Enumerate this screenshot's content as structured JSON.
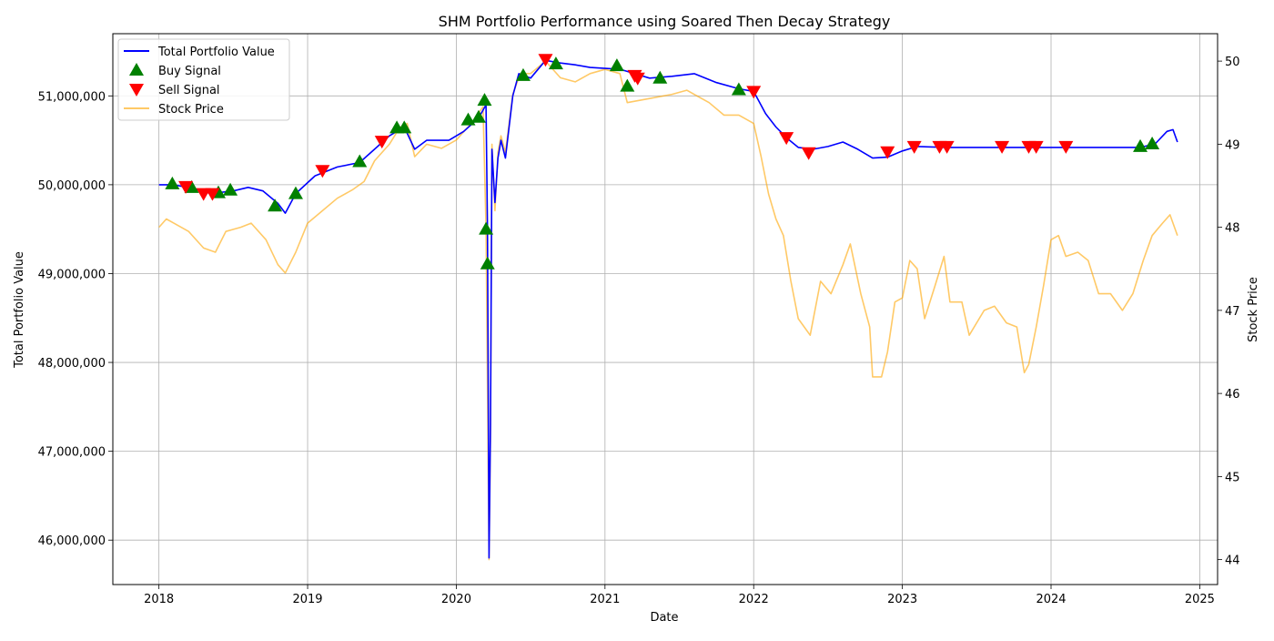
{
  "chart_data": {
    "type": "line",
    "title": "SHM Portfolio Performance using Soared Then Decay Strategy",
    "xlabel": "Date",
    "ylabel": "Total Portfolio Value",
    "y2label": "Stock Price",
    "grid": true,
    "legend_position": "top-left",
    "x_ticks": [
      "2018",
      "2019",
      "2020",
      "2021",
      "2022",
      "2023",
      "2024",
      "2025"
    ],
    "xlim": [
      2017.69,
      2025.12
    ],
    "ylim": [
      45500000,
      51700000
    ],
    "y_ticks": [
      46000000,
      47000000,
      48000000,
      49000000,
      50000000,
      51000000
    ],
    "y_tick_labels": [
      "46,000,000",
      "47,000,000",
      "48,000,000",
      "49,000,000",
      "50,000,000",
      "51,000,000"
    ],
    "y2lim": [
      43.7,
      50.33
    ],
    "y2_ticks": [
      44,
      45,
      46,
      47,
      48,
      49,
      50
    ],
    "y2_tick_labels": [
      "44",
      "45",
      "46",
      "47",
      "48",
      "49",
      "50"
    ],
    "series": [
      {
        "name": "Total Portfolio Value",
        "color": "#0000ff",
        "axis": "left",
        "marker": "line",
        "points": [
          [
            2018.0,
            50000000
          ],
          [
            2018.1,
            50000000
          ],
          [
            2018.25,
            49950000
          ],
          [
            2018.35,
            49900000
          ],
          [
            2018.5,
            49930000
          ],
          [
            2018.6,
            49970000
          ],
          [
            2018.7,
            49930000
          ],
          [
            2018.8,
            49790000
          ],
          [
            2018.85,
            49680000
          ],
          [
            2018.92,
            49900000
          ],
          [
            2019.05,
            50100000
          ],
          [
            2019.2,
            50200000
          ],
          [
            2019.35,
            50250000
          ],
          [
            2019.45,
            50400000
          ],
          [
            2019.55,
            50550000
          ],
          [
            2019.65,
            50650000
          ],
          [
            2019.72,
            50400000
          ],
          [
            2019.8,
            50500000
          ],
          [
            2019.95,
            50500000
          ],
          [
            2020.05,
            50600000
          ],
          [
            2020.15,
            50750000
          ],
          [
            2020.2,
            50900000
          ],
          [
            2020.21,
            49500000
          ],
          [
            2020.22,
            45800000
          ],
          [
            2020.23,
            47300000
          ],
          [
            2020.24,
            50400000
          ],
          [
            2020.26,
            49800000
          ],
          [
            2020.28,
            50300000
          ],
          [
            2020.3,
            50500000
          ],
          [
            2020.33,
            50300000
          ],
          [
            2020.38,
            51000000
          ],
          [
            2020.42,
            51250000
          ],
          [
            2020.5,
            51200000
          ],
          [
            2020.6,
            51400000
          ],
          [
            2020.7,
            51370000
          ],
          [
            2020.8,
            51350000
          ],
          [
            2020.9,
            51320000
          ],
          [
            2021.0,
            51310000
          ],
          [
            2021.1,
            51300000
          ],
          [
            2021.2,
            51250000
          ],
          [
            2021.3,
            51200000
          ],
          [
            2021.45,
            51220000
          ],
          [
            2021.6,
            51250000
          ],
          [
            2021.75,
            51150000
          ],
          [
            2021.9,
            51080000
          ],
          [
            2022.0,
            51050000
          ],
          [
            2022.08,
            50800000
          ],
          [
            2022.15,
            50650000
          ],
          [
            2022.22,
            50530000
          ],
          [
            2022.3,
            50420000
          ],
          [
            2022.4,
            50400000
          ],
          [
            2022.5,
            50430000
          ],
          [
            2022.6,
            50480000
          ],
          [
            2022.7,
            50400000
          ],
          [
            2022.8,
            50300000
          ],
          [
            2022.9,
            50310000
          ],
          [
            2023.0,
            50380000
          ],
          [
            2023.1,
            50430000
          ],
          [
            2023.3,
            50420000
          ],
          [
            2023.5,
            50420000
          ],
          [
            2023.8,
            50420000
          ],
          [
            2024.0,
            50420000
          ],
          [
            2024.3,
            50420000
          ],
          [
            2024.6,
            50420000
          ],
          [
            2024.7,
            50460000
          ],
          [
            2024.78,
            50600000
          ],
          [
            2024.82,
            50620000
          ],
          [
            2024.85,
            50480000
          ]
        ]
      },
      {
        "name": "Buy Signal",
        "color": "#008000",
        "axis": "left",
        "marker": "triangle-up",
        "points": [
          [
            2018.09,
            50010000
          ],
          [
            2018.22,
            49970000
          ],
          [
            2018.4,
            49910000
          ],
          [
            2018.48,
            49940000
          ],
          [
            2018.78,
            49760000
          ],
          [
            2018.92,
            49900000
          ],
          [
            2019.35,
            50260000
          ],
          [
            2019.6,
            50640000
          ],
          [
            2019.65,
            50640000
          ],
          [
            2020.08,
            50730000
          ],
          [
            2020.15,
            50760000
          ],
          [
            2020.19,
            50950000
          ],
          [
            2020.2,
            49500000
          ],
          [
            2020.21,
            49110000
          ],
          [
            2020.45,
            51230000
          ],
          [
            2020.67,
            51360000
          ],
          [
            2021.08,
            51340000
          ],
          [
            2021.15,
            51110000
          ],
          [
            2021.37,
            51200000
          ],
          [
            2021.9,
            51070000
          ],
          [
            2024.6,
            50430000
          ],
          [
            2024.68,
            50460000
          ]
        ]
      },
      {
        "name": "Sell Signal",
        "color": "#ff0000",
        "axis": "left",
        "marker": "triangle-down",
        "points": [
          [
            2018.18,
            49980000
          ],
          [
            2018.3,
            49900000
          ],
          [
            2018.36,
            49900000
          ],
          [
            2019.1,
            50160000
          ],
          [
            2019.5,
            50490000
          ],
          [
            2020.6,
            51410000
          ],
          [
            2021.2,
            51230000
          ],
          [
            2021.22,
            51200000
          ],
          [
            2022.0,
            51050000
          ],
          [
            2022.22,
            50530000
          ],
          [
            2022.37,
            50360000
          ],
          [
            2022.9,
            50370000
          ],
          [
            2023.08,
            50430000
          ],
          [
            2023.25,
            50430000
          ],
          [
            2023.3,
            50430000
          ],
          [
            2023.67,
            50430000
          ],
          [
            2023.85,
            50430000
          ],
          [
            2023.9,
            50430000
          ],
          [
            2024.1,
            50430000
          ]
        ]
      },
      {
        "name": "Stock Price",
        "color": "#ffa500",
        "axis": "right",
        "marker": "line",
        "points": [
          [
            2018.0,
            48.0
          ],
          [
            2018.05,
            48.1
          ],
          [
            2018.1,
            48.05
          ],
          [
            2018.2,
            47.95
          ],
          [
            2018.3,
            47.75
          ],
          [
            2018.38,
            47.7
          ],
          [
            2018.45,
            47.95
          ],
          [
            2018.55,
            48.0
          ],
          [
            2018.62,
            48.05
          ],
          [
            2018.72,
            47.85
          ],
          [
            2018.8,
            47.55
          ],
          [
            2018.85,
            47.45
          ],
          [
            2018.92,
            47.7
          ],
          [
            2019.0,
            48.05
          ],
          [
            2019.1,
            48.2
          ],
          [
            2019.2,
            48.35
          ],
          [
            2019.3,
            48.45
          ],
          [
            2019.38,
            48.55
          ],
          [
            2019.45,
            48.8
          ],
          [
            2019.55,
            49.0
          ],
          [
            2019.62,
            49.2
          ],
          [
            2019.67,
            49.25
          ],
          [
            2019.72,
            48.85
          ],
          [
            2019.8,
            49.0
          ],
          [
            2019.9,
            48.95
          ],
          [
            2020.0,
            49.05
          ],
          [
            2020.1,
            49.25
          ],
          [
            2020.18,
            49.45
          ],
          [
            2020.2,
            48.0
          ],
          [
            2020.22,
            44.0
          ],
          [
            2020.23,
            45.5
          ],
          [
            2020.24,
            49.0
          ],
          [
            2020.26,
            48.2
          ],
          [
            2020.28,
            48.9
          ],
          [
            2020.3,
            49.1
          ],
          [
            2020.33,
            48.9
          ],
          [
            2020.38,
            49.6
          ],
          [
            2020.43,
            49.85
          ],
          [
            2020.5,
            49.85
          ],
          [
            2020.6,
            50.0
          ],
          [
            2020.7,
            49.8
          ],
          [
            2020.8,
            49.75
          ],
          [
            2020.9,
            49.85
          ],
          [
            2021.0,
            49.9
          ],
          [
            2021.1,
            49.85
          ],
          [
            2021.15,
            49.5
          ],
          [
            2021.3,
            49.55
          ],
          [
            2021.45,
            49.6
          ],
          [
            2021.55,
            49.65
          ],
          [
            2021.7,
            49.5
          ],
          [
            2021.8,
            49.35
          ],
          [
            2021.9,
            49.35
          ],
          [
            2022.0,
            49.25
          ],
          [
            2022.05,
            48.85
          ],
          [
            2022.1,
            48.4
          ],
          [
            2022.15,
            48.1
          ],
          [
            2022.2,
            47.9
          ],
          [
            2022.25,
            47.35
          ],
          [
            2022.3,
            46.9
          ],
          [
            2022.38,
            46.7
          ],
          [
            2022.45,
            47.35
          ],
          [
            2022.52,
            47.2
          ],
          [
            2022.6,
            47.55
          ],
          [
            2022.65,
            47.8
          ],
          [
            2022.72,
            47.2
          ],
          [
            2022.78,
            46.8
          ],
          [
            2022.8,
            46.2
          ],
          [
            2022.86,
            46.2
          ],
          [
            2022.9,
            46.5
          ],
          [
            2022.95,
            47.1
          ],
          [
            2023.0,
            47.15
          ],
          [
            2023.05,
            47.6
          ],
          [
            2023.1,
            47.5
          ],
          [
            2023.15,
            46.9
          ],
          [
            2023.22,
            47.3
          ],
          [
            2023.28,
            47.65
          ],
          [
            2023.32,
            47.1
          ],
          [
            2023.4,
            47.1
          ],
          [
            2023.45,
            46.7
          ],
          [
            2023.55,
            47.0
          ],
          [
            2023.62,
            47.05
          ],
          [
            2023.7,
            46.85
          ],
          [
            2023.77,
            46.8
          ],
          [
            2023.82,
            46.25
          ],
          [
            2023.85,
            46.35
          ],
          [
            2023.9,
            46.8
          ],
          [
            2023.95,
            47.3
          ],
          [
            2024.0,
            47.85
          ],
          [
            2024.05,
            47.9
          ],
          [
            2024.1,
            47.65
          ],
          [
            2024.18,
            47.7
          ],
          [
            2024.25,
            47.6
          ],
          [
            2024.32,
            47.2
          ],
          [
            2024.4,
            47.2
          ],
          [
            2024.48,
            47.0
          ],
          [
            2024.55,
            47.2
          ],
          [
            2024.62,
            47.6
          ],
          [
            2024.68,
            47.9
          ],
          [
            2024.75,
            48.05
          ],
          [
            2024.8,
            48.15
          ],
          [
            2024.85,
            47.9
          ]
        ]
      }
    ]
  }
}
